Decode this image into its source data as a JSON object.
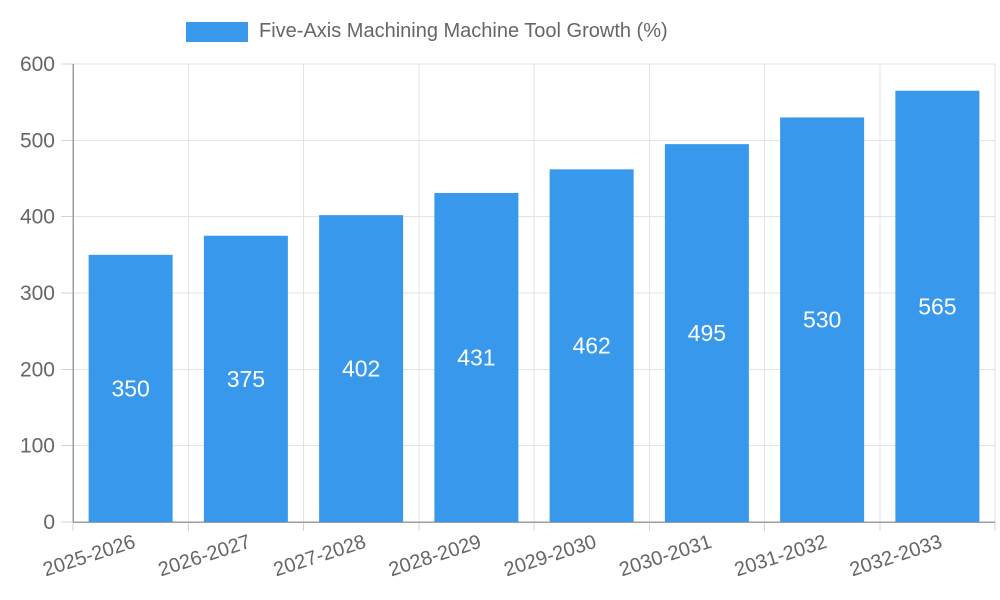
{
  "legend": {
    "title": "Five-Axis Machining Machine Tool Growth (%)"
  },
  "chart_data": {
    "type": "bar",
    "categories": [
      "2025-2026",
      "2026-2027",
      "2027-2028",
      "2028-2029",
      "2029-2030",
      "2030-2031",
      "2031-2032",
      "2032-2033"
    ],
    "values": [
      350,
      375,
      402,
      431,
      462,
      495,
      530,
      565
    ],
    "title": "Five-Axis Machining Machine Tool Growth (%)",
    "xlabel": "",
    "ylabel": "",
    "ylim": [
      0,
      600
    ],
    "ytick_step": 100,
    "yticks": [
      0,
      100,
      200,
      300,
      400,
      500,
      600
    ],
    "grid": true,
    "legend_position": "top",
    "bar_labels_inside": true,
    "colors": {
      "bar": "#3899ec",
      "bar_value_label": "#ffffff",
      "axis_text": "#666666",
      "grid_line": "#e3e3e3",
      "axis_line": "#9e9e9e",
      "tick_mark": "#d4d4d4",
      "background": "#ffffff"
    }
  }
}
